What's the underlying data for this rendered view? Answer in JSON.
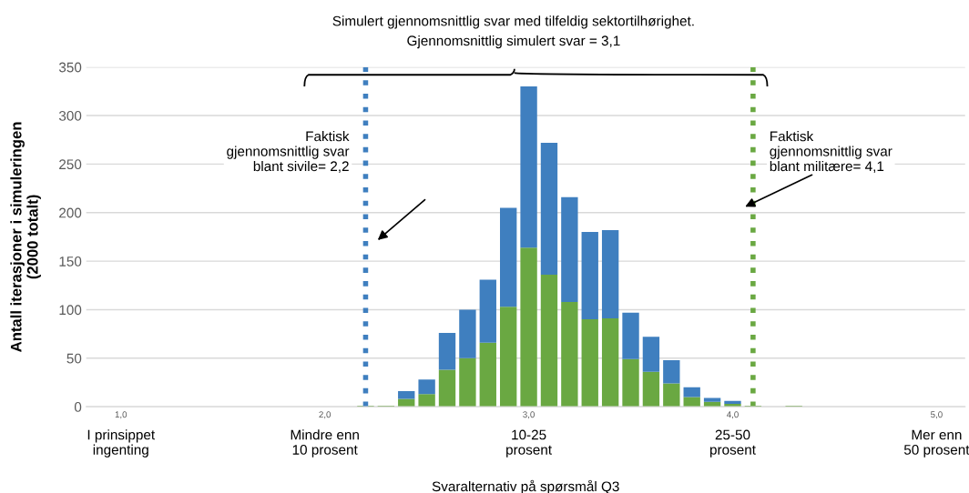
{
  "chart_data": {
    "type": "bar",
    "title": "Simulert gjennomsnittlig svar med tilfeldig sektortilhørighet.",
    "subtitle": "Gjennomsnittlig simulert svar = 3,1",
    "xlabel": "Svaralternativ på spørsmål Q3",
    "ylabel": "Antall iterasjoner i simuleringen\n(2000 totalt)",
    "x": [
      2.2,
      2.3,
      2.4,
      2.5,
      2.6,
      2.7,
      2.8,
      2.9,
      3.0,
      3.1,
      3.2,
      3.3,
      3.4,
      3.5,
      3.6,
      3.7,
      3.8,
      3.9,
      4.0,
      4.1,
      4.2,
      4.3
    ],
    "stacked": true,
    "series": [
      {
        "color": "#6aa842",
        "values": [
          1,
          1,
          8,
          13,
          38,
          50,
          66,
          103,
          164,
          136,
          108,
          90,
          91,
          49,
          36,
          24,
          10,
          5,
          3,
          1,
          0,
          1
        ]
      },
      {
        "color": "#3f7fbf",
        "values": [
          0,
          0,
          8,
          15,
          38,
          50,
          65,
          102,
          166,
          136,
          108,
          90,
          91,
          48,
          36,
          24,
          10,
          4,
          3,
          0,
          0,
          0
        ]
      }
    ],
    "xlim": [
      0.83,
      5.14
    ],
    "xticks": [
      {
        "value": 1,
        "label": "1,0"
      },
      {
        "value": 2,
        "label": "2,0"
      },
      {
        "value": 3,
        "label": "3,0"
      },
      {
        "value": 4,
        "label": "4,0"
      },
      {
        "value": 5,
        "label": "5,0"
      }
    ],
    "ylim": [
      0,
      350
    ],
    "yticks": [
      0,
      50,
      100,
      150,
      200,
      250,
      300,
      350
    ],
    "grid": "y",
    "ref_lines": [
      {
        "axis": "x",
        "value": 2.2,
        "label": "Faktisk\ngjennomsnittlig svar\nblant sivile= 2,2",
        "color": "#3f7fbf",
        "line_style": "dotted"
      },
      {
        "axis": "x",
        "value": 4.1,
        "label": "Faktisk\ngjennomsnittlig svar\nblant militære= 4,1",
        "color": "#6aa842",
        "line_style": "dotted"
      }
    ],
    "annotations": [
      "I prinsippet\ningenting",
      "Mindre enn\n10 prosent",
      "10-25\nprosent",
      "25-50\nprosent",
      "Mer enn\n50 prosent"
    ]
  }
}
